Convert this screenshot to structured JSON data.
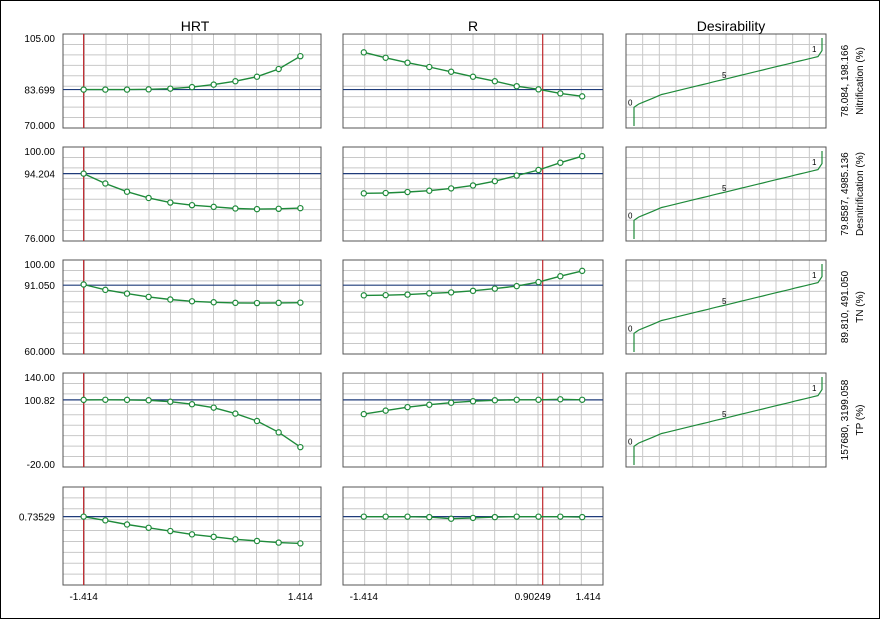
{
  "headers": [
    "HRT",
    "R",
    "Desirability"
  ],
  "colors": {
    "curve": "#1e8a3a",
    "hline": "#1f3b7a",
    "vline": "#c0282d",
    "grid": "#c8c8c8",
    "border": "#555555"
  },
  "chart_data": {
    "type": "line",
    "factors": [
      {
        "name": "HRT",
        "xlim": [
          -1.414,
          1.414
        ],
        "current": -1.414,
        "tick_labels": [
          "-1.414",
          "1.414"
        ]
      },
      {
        "name": "R",
        "xlim": [
          -1.414,
          1.414
        ],
        "current": 0.90249,
        "tick_labels": [
          "-1.414",
          "0.90249",
          "1.414"
        ]
      }
    ],
    "responses": [
      {
        "name": "Nitrification (%)",
        "range_label": "78.084,  198.166",
        "ylim": [
          70,
          105
        ],
        "y_labels": [
          "105.00",
          "83.699",
          "70.000"
        ],
        "y_label_values": [
          105,
          83.699,
          70
        ],
        "current": 83.699,
        "hrt": {
          "x": [
            -1.414,
            -1.131,
            -0.848,
            -0.566,
            -0.283,
            0,
            0.283,
            0.566,
            0.848,
            1.131,
            1.414
          ],
          "y": [
            83.7,
            83.7,
            83.7,
            83.8,
            84.1,
            84.8,
            85.9,
            87.4,
            89.4,
            92.8,
            98.5
          ]
        },
        "r": {
          "x": [
            -1.414,
            -1.131,
            -0.848,
            -0.566,
            -0.283,
            0,
            0.283,
            0.566,
            0.848,
            1.131,
            1.414
          ],
          "y": [
            100.2,
            97.8,
            95.6,
            93.7,
            91.6,
            89.4,
            87.4,
            85.2,
            83.8,
            82.0,
            80.7
          ]
        },
        "desirability": {
          "labels": [
            "0",
            "5",
            "1"
          ]
        }
      },
      {
        "name": "Desnitrification (%)",
        "range_label": "79.8587,  4985.136",
        "ylim": [
          76,
          100
        ],
        "y_labels": [
          "100.00",
          "94.204",
          "76.000"
        ],
        "y_label_values": [
          100,
          94.204,
          76
        ],
        "current": 94.204,
        "hrt": {
          "x": [
            -1.414,
            -1.131,
            -0.848,
            -0.566,
            -0.283,
            0,
            0.283,
            0.566,
            0.848,
            1.131,
            1.414
          ],
          "y": [
            94.2,
            91.2,
            88.7,
            86.8,
            85.4,
            84.6,
            84.1,
            83.6,
            83.4,
            83.5,
            83.7
          ]
        },
        "r": {
          "x": [
            -1.414,
            -1.131,
            -0.848,
            -0.566,
            -0.283,
            0,
            0.283,
            0.566,
            0.848,
            1.131,
            1.414
          ],
          "y": [
            88.2,
            88.3,
            88.6,
            89.0,
            89.7,
            90.6,
            91.9,
            93.6,
            95.3,
            97.5,
            99.5
          ]
        },
        "desirability": {
          "labels": [
            "0",
            "5",
            "1"
          ]
        }
      },
      {
        "name": "TN (%)",
        "range_label": "89.810,  491.050",
        "ylim": [
          60,
          100
        ],
        "y_labels": [
          "100.00",
          "91.050",
          "60.000"
        ],
        "y_label_values": [
          100,
          91.05,
          60
        ],
        "current": 91.05,
        "hrt": {
          "x": [
            -1.414,
            -1.131,
            -0.848,
            -0.566,
            -0.283,
            0,
            0.283,
            0.566,
            0.848,
            1.131,
            1.414
          ],
          "y": [
            91.4,
            88.7,
            86.8,
            85.1,
            83.8,
            82.9,
            82.4,
            82.1,
            82.0,
            82.1,
            82.2
          ]
        },
        "r": {
          "x": [
            -1.414,
            -1.131,
            -0.848,
            -0.566,
            -0.283,
            0,
            0.283,
            0.566,
            0.848,
            1.131,
            1.414
          ],
          "y": [
            85.9,
            86.0,
            86.3,
            86.9,
            87.4,
            88.2,
            89.3,
            90.6,
            92.6,
            95.6,
            98.3
          ]
        },
        "desirability": {
          "labels": [
            "0",
            "5",
            "1"
          ]
        }
      },
      {
        "name": "TP (%)",
        "range_label": "157680,  3199.058",
        "ylim": [
          -20,
          140
        ],
        "y_labels": [
          "140.00",
          "100.82",
          "-20.00"
        ],
        "y_label_values": [
          140,
          100.82,
          -20
        ],
        "current": 100.82,
        "hrt": {
          "x": [
            -1.414,
            -1.131,
            -0.848,
            -0.566,
            -0.283,
            0,
            0.283,
            0.566,
            0.848,
            1.131,
            1.414
          ],
          "y": [
            100.8,
            101.0,
            100.8,
            100.0,
            97.0,
            92.0,
            85.0,
            73.0,
            58.0,
            35.0,
            5.0
          ]
        },
        "r": {
          "x": [
            -1.414,
            -1.131,
            -0.848,
            -0.566,
            -0.283,
            0,
            0.283,
            0.566,
            0.848,
            1.131,
            1.414
          ],
          "y": [
            72.0,
            79.0,
            86.0,
            91.0,
            95.0,
            98.0,
            100.0,
            101.0,
            101.0,
            102.0,
            101.0
          ]
        },
        "desirability": {
          "labels": [
            "0",
            "5",
            "1"
          ]
        }
      },
      {
        "name": "Desirability",
        "range_label": "",
        "ylim": [
          0,
          1
        ],
        "y_labels": [
          "0.73529"
        ],
        "y_label_values": [
          0.73529
        ],
        "current": 0.73529,
        "hrt": {
          "x": [
            -1.414,
            -1.131,
            -0.848,
            -0.566,
            -0.283,
            0,
            0.283,
            0.566,
            0.848,
            1.131,
            1.414
          ],
          "y": [
            0.735,
            0.69,
            0.64,
            0.6,
            0.56,
            0.52,
            0.49,
            0.46,
            0.44,
            0.42,
            0.41
          ]
        },
        "r": {
          "x": [
            -1.414,
            -1.131,
            -0.848,
            -0.566,
            -0.283,
            0,
            0.283,
            0.566,
            0.848,
            1.131,
            1.414
          ],
          "y": [
            0.735,
            0.735,
            0.735,
            0.73,
            0.71,
            0.72,
            0.73,
            0.735,
            0.735,
            0.735,
            0.73
          ]
        },
        "desirability": null
      }
    ]
  }
}
